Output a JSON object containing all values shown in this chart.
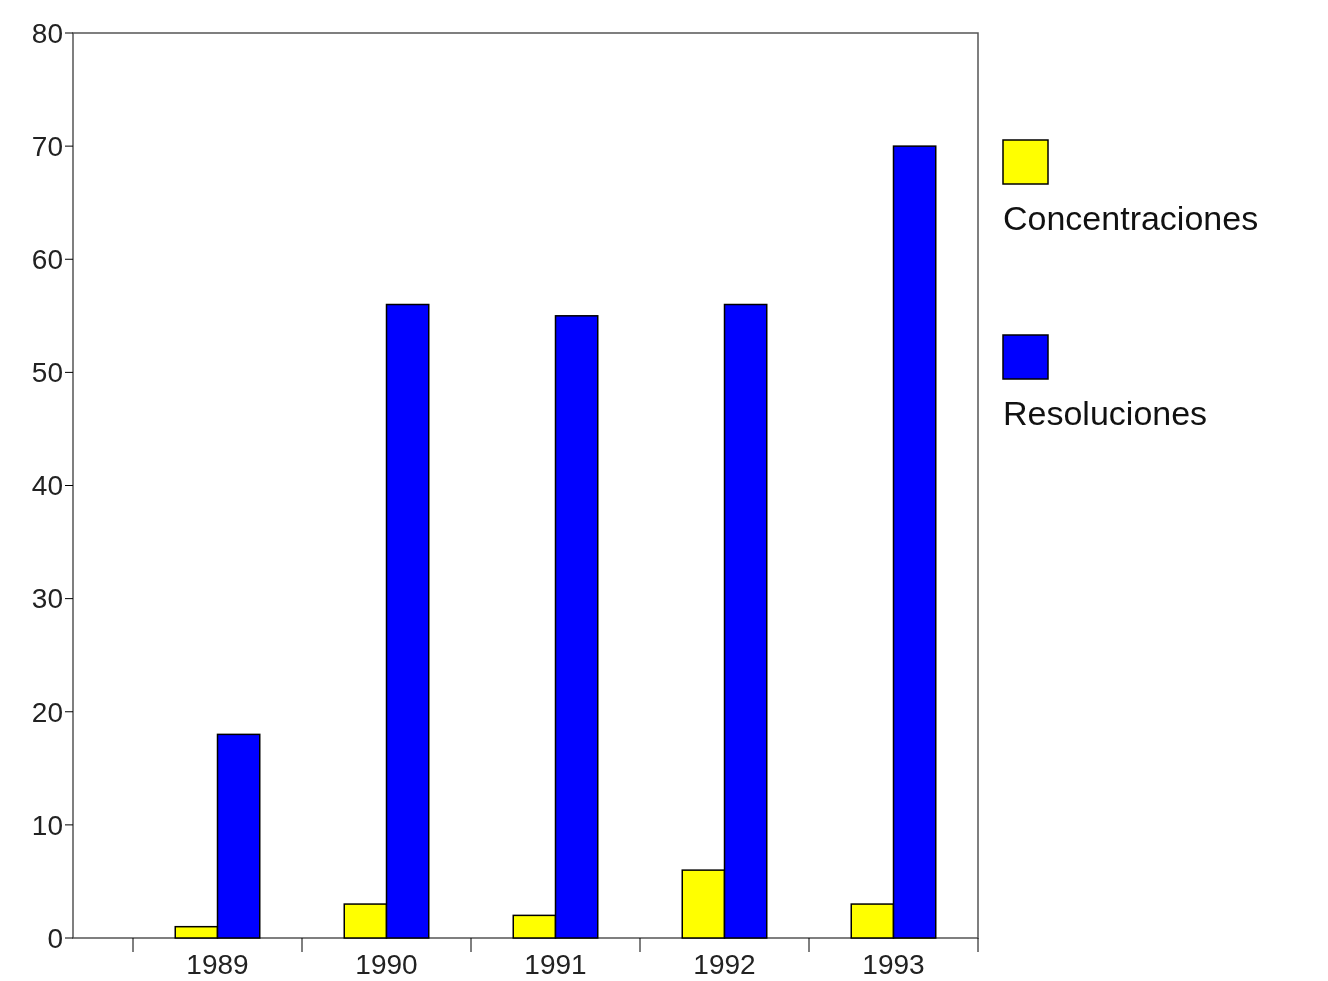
{
  "chart_data": {
    "type": "bar",
    "categories": [
      "1989",
      "1990",
      "1991",
      "1992",
      "1993"
    ],
    "series": [
      {
        "name": "Concentraciones",
        "color": "#ffff00",
        "values": [
          1,
          3,
          2,
          6,
          3
        ]
      },
      {
        "name": "Resoluciones",
        "color": "#0000ff",
        "values": [
          18,
          56,
          55,
          56,
          70
        ]
      }
    ],
    "ylim": [
      0,
      80
    ],
    "yticks": [
      0,
      10,
      20,
      30,
      40,
      50,
      60,
      70,
      80
    ],
    "grid": false,
    "legend": "right"
  }
}
